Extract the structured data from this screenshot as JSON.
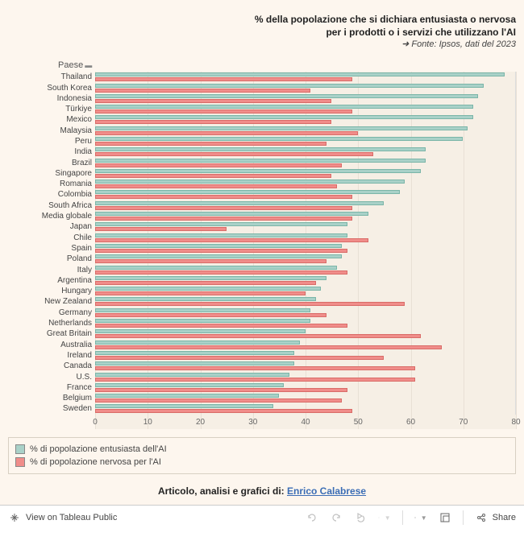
{
  "title": {
    "line1": "% della popolazione che si dichiara entusiasta o nervosa",
    "line2": "per i prodotti o i servizi che utilizzano l'AI",
    "source": "➜ Fonte:  Ipsos, dati del 2023"
  },
  "chart": {
    "type": "bar",
    "axis_label": "Paese",
    "xlim": [
      0,
      80
    ],
    "xticks": [
      0,
      10,
      20,
      30,
      40,
      50,
      60,
      70,
      80
    ],
    "background_color": "#fdf6ee",
    "plot_bg": "#f6efe5",
    "grid_color": "#e8e0d5",
    "series": {
      "enthusiastic": {
        "label": "% di popolazione entusiasta dell'AI",
        "color": "#a9d1c8"
      },
      "nervous": {
        "label": "% di popolazione nervosa per l'AI",
        "color": "#f08d8a"
      }
    },
    "countries": [
      {
        "name": "Thailand",
        "enth": 78,
        "nerv": 49
      },
      {
        "name": "South Korea",
        "enth": 74,
        "nerv": 41
      },
      {
        "name": "Indonesia",
        "enth": 73,
        "nerv": 45
      },
      {
        "name": "Türkiye",
        "enth": 72,
        "nerv": 49
      },
      {
        "name": "Mexico",
        "enth": 72,
        "nerv": 45
      },
      {
        "name": "Malaysia",
        "enth": 71,
        "nerv": 50
      },
      {
        "name": "Peru",
        "enth": 70,
        "nerv": 44
      },
      {
        "name": "India",
        "enth": 63,
        "nerv": 53
      },
      {
        "name": "Brazil",
        "enth": 63,
        "nerv": 47
      },
      {
        "name": "Singapore",
        "enth": 62,
        "nerv": 45
      },
      {
        "name": "Romania",
        "enth": 59,
        "nerv": 46
      },
      {
        "name": "Colombia",
        "enth": 58,
        "nerv": 49
      },
      {
        "name": "South Africa",
        "enth": 55,
        "nerv": 49
      },
      {
        "name": "Media globale",
        "enth": 52,
        "nerv": 49
      },
      {
        "name": "Japan",
        "enth": 48,
        "nerv": 25
      },
      {
        "name": "Chile",
        "enth": 48,
        "nerv": 52
      },
      {
        "name": "Spain",
        "enth": 47,
        "nerv": 48
      },
      {
        "name": "Poland",
        "enth": 47,
        "nerv": 44
      },
      {
        "name": "Italy",
        "enth": 46,
        "nerv": 48
      },
      {
        "name": "Argentina",
        "enth": 44,
        "nerv": 42
      },
      {
        "name": "Hungary",
        "enth": 43,
        "nerv": 40
      },
      {
        "name": "New Zealand",
        "enth": 42,
        "nerv": 59
      },
      {
        "name": "Germany",
        "enth": 41,
        "nerv": 44
      },
      {
        "name": "Netherlands",
        "enth": 41,
        "nerv": 48
      },
      {
        "name": "Great Britain",
        "enth": 40,
        "nerv": 62
      },
      {
        "name": "Australia",
        "enth": 39,
        "nerv": 66
      },
      {
        "name": "Ireland",
        "enth": 38,
        "nerv": 55
      },
      {
        "name": "Canada",
        "enth": 38,
        "nerv": 61
      },
      {
        "name": "U.S.",
        "enth": 37,
        "nerv": 61
      },
      {
        "name": "France",
        "enth": 36,
        "nerv": 48
      },
      {
        "name": "Belgium",
        "enth": 35,
        "nerv": 47
      },
      {
        "name": "Sweden",
        "enth": 34,
        "nerv": 49
      }
    ]
  },
  "credit": {
    "prefix": "Articolo, analisi e grafici di: ",
    "author": "Enrico Calabrese"
  },
  "toolbar": {
    "view_label": "View on Tableau Public",
    "share_label": "Share"
  }
}
